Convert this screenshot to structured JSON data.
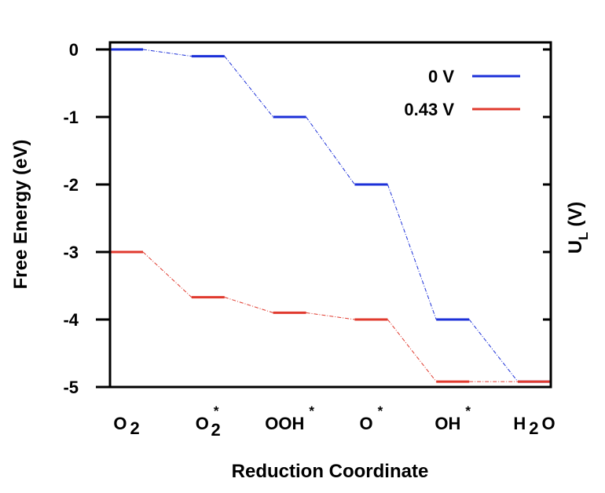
{
  "chart_data": {
    "type": "line",
    "xlabel": "Reduction Coordinate",
    "ylabel": "Free Energy (eV)",
    "y2label": "U",
    "y2label_sub": "L",
    "y2label_unit": " (V)",
    "ylim": [
      -5,
      0
    ],
    "yticks": [
      "0",
      "-1",
      "-2",
      "-3",
      "-4",
      "-5"
    ],
    "categories": [
      {
        "base": "O",
        "sub": "2",
        "sup": ""
      },
      {
        "base": "O",
        "sub": "2",
        "sup": "*"
      },
      {
        "base": "OOH",
        "sub": "",
        "sup": "*"
      },
      {
        "base": "O",
        "sub": "",
        "sup": "*"
      },
      {
        "base": "OH",
        "sub": "",
        "sup": "*"
      },
      {
        "base": "H",
        "sub": "2",
        "sup": "",
        "tail": "O"
      }
    ],
    "series": [
      {
        "name": "0 V",
        "color": "#1c30d8",
        "values": [
          0,
          -0.1,
          -1.0,
          -2.0,
          -4.0,
          -4.92
        ]
      },
      {
        "name": "0.43 V",
        "color": "#e03a2e",
        "values": [
          -3.0,
          -3.67,
          -3.9,
          -4.0,
          -4.92,
          -4.92
        ]
      }
    ],
    "legend_position": "top-right",
    "grid": false
  }
}
